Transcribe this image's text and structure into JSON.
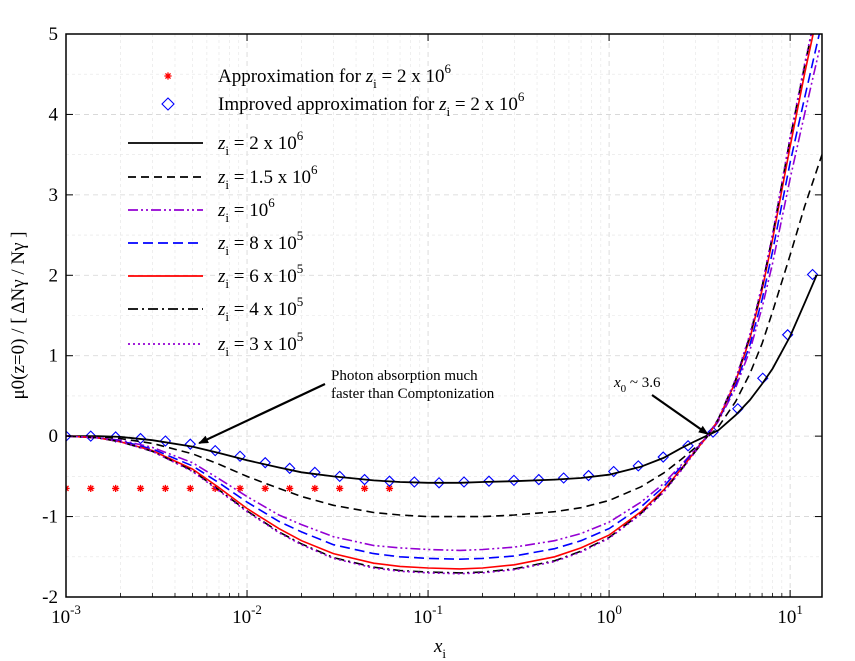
{
  "chart_data": {
    "type": "line",
    "title": "",
    "xlabel": {
      "symbol": "x",
      "sub": "i"
    },
    "ylabel": "μ0(z=0) / [ ΔNγ / Nγ ]",
    "xscale": "log",
    "xlim": [
      0.001,
      15
    ],
    "ylim": [
      -2,
      5
    ],
    "x_ticks": [
      {
        "value": 0.001,
        "base": "10",
        "exp": "-3"
      },
      {
        "value": 0.01,
        "base": "10",
        "exp": "-2"
      },
      {
        "value": 0.1,
        "base": "10",
        "exp": "-1"
      },
      {
        "value": 1,
        "base": "10",
        "exp": "0"
      },
      {
        "value": 10,
        "base": "10",
        "exp": "1"
      }
    ],
    "y_ticks": [
      "-2",
      "-1",
      "0",
      "1",
      "2",
      "3",
      "4",
      "5"
    ],
    "grid": true,
    "legend_position": "top-left",
    "series": [
      {
        "name": "Approximation for zi = 2 x 10^6",
        "label_pre": "Approximation for ",
        "z": "z",
        "sub": "i",
        "val": " = 2 x 10",
        "exp": "6",
        "style": "marker-star",
        "color": "#ff0000",
        "x": [
          0.001,
          0.00137,
          0.00188,
          0.00258,
          0.00354,
          0.00486,
          0.00667,
          0.00915,
          0.0126,
          0.0172,
          0.0237,
          0.0325,
          0.0446,
          0.0612
        ],
        "y": [
          -0.65,
          -0.65,
          -0.65,
          -0.65,
          -0.65,
          -0.65,
          -0.65,
          -0.65,
          -0.65,
          -0.65,
          -0.65,
          -0.65,
          -0.65,
          -0.65
        ]
      },
      {
        "name": "Improved approximation for zi = 2 x 10^6",
        "label_pre": "Improved approximation for ",
        "z": "z",
        "sub": "i",
        "val": " = 2 x 10",
        "exp": "6",
        "style": "marker-diamond",
        "color": "#0000ff",
        "x": [
          0.001,
          0.00137,
          0.00188,
          0.00258,
          0.00354,
          0.00486,
          0.00667,
          0.00915,
          0.0126,
          0.0172,
          0.0237,
          0.0325,
          0.0446,
          0.0612,
          0.084,
          0.115,
          0.158,
          0.217,
          0.298,
          0.409,
          0.561,
          0.77,
          1.06,
          1.45,
          1.99,
          2.73,
          3.75,
          5.14,
          7.06,
          9.69,
          13.3
        ],
        "y": [
          0,
          0,
          -0.01,
          -0.03,
          -0.06,
          -0.1,
          -0.18,
          -0.25,
          -0.33,
          -0.4,
          -0.45,
          -0.5,
          -0.54,
          -0.56,
          -0.57,
          -0.58,
          -0.57,
          -0.56,
          -0.55,
          -0.54,
          -0.52,
          -0.49,
          -0.44,
          -0.37,
          -0.26,
          -0.12,
          0.05,
          0.34,
          0.72,
          1.26,
          2.01
        ]
      },
      {
        "name": "zi = 2 x 10^6",
        "z": "z",
        "sub": "i",
        "val": " = 2 x 10",
        "exp": "6",
        "style": "solid",
        "color": "#000000",
        "x": [
          0.001,
          0.0015,
          0.002,
          0.003,
          0.005,
          0.007,
          0.01,
          0.015,
          0.02,
          0.03,
          0.05,
          0.07,
          0.1,
          0.15,
          0.2,
          0.3,
          0.5,
          0.7,
          1,
          1.5,
          2,
          2.5,
          3,
          3.5,
          4,
          5,
          6,
          7,
          8,
          10,
          12,
          14
        ],
        "y": [
          0,
          0,
          -0.01,
          -0.05,
          -0.13,
          -0.21,
          -0.3,
          -0.39,
          -0.45,
          -0.5,
          -0.55,
          -0.57,
          -0.58,
          -0.58,
          -0.57,
          -0.56,
          -0.54,
          -0.52,
          -0.48,
          -0.38,
          -0.27,
          -0.15,
          -0.06,
          0.01,
          0.07,
          0.26,
          0.45,
          0.65,
          0.84,
          1.24,
          1.65,
          2.0
        ]
      },
      {
        "name": "zi = 1.5 x 10^6",
        "z": "z",
        "sub": "i",
        "val": " = 1.5 x 10",
        "exp": "6",
        "style": "dashed",
        "color": "#000000",
        "x": [
          0.001,
          0.0015,
          0.002,
          0.003,
          0.005,
          0.007,
          0.01,
          0.015,
          0.02,
          0.03,
          0.05,
          0.07,
          0.1,
          0.15,
          0.2,
          0.3,
          0.5,
          0.7,
          1,
          1.5,
          2,
          2.5,
          3,
          3.5,
          4,
          5,
          6,
          7,
          8,
          10,
          12,
          15
        ],
        "y": [
          0,
          -0.01,
          -0.03,
          -0.09,
          -0.22,
          -0.35,
          -0.5,
          -0.65,
          -0.75,
          -0.86,
          -0.95,
          -0.98,
          -1.0,
          -1.0,
          -1.0,
          -0.98,
          -0.94,
          -0.89,
          -0.8,
          -0.63,
          -0.46,
          -0.29,
          -0.14,
          -0.01,
          0.11,
          0.43,
          0.78,
          1.15,
          1.55,
          2.25,
          2.85,
          3.5
        ]
      },
      {
        "name": "zi = 10^6",
        "z": "z",
        "sub": "i",
        "val": " = 10",
        "exp": "6",
        "style": "dashdotdot",
        "color": "#9400d3",
        "x": [
          0.001,
          0.0015,
          0.002,
          0.003,
          0.005,
          0.007,
          0.01,
          0.015,
          0.02,
          0.03,
          0.05,
          0.07,
          0.1,
          0.15,
          0.2,
          0.3,
          0.5,
          0.7,
          1,
          1.5,
          2,
          2.5,
          3,
          3.5,
          4,
          5,
          6,
          7,
          8,
          10,
          12,
          14.5
        ],
        "y": [
          0,
          -0.02,
          -0.05,
          -0.14,
          -0.33,
          -0.53,
          -0.75,
          -0.98,
          -1.1,
          -1.25,
          -1.36,
          -1.39,
          -1.41,
          -1.42,
          -1.41,
          -1.38,
          -1.3,
          -1.21,
          -1.07,
          -0.82,
          -0.59,
          -0.36,
          -0.16,
          0.0,
          0.18,
          0.6,
          1.07,
          1.6,
          2.15,
          3.2,
          4.0,
          4.8
        ]
      },
      {
        "name": "zi = 8 x 10^5",
        "z": "z",
        "sub": "i",
        "val": " = 8 x 10",
        "exp": "5",
        "style": "dashed-long",
        "color": "#0000ff",
        "x": [
          0.001,
          0.0015,
          0.002,
          0.003,
          0.005,
          0.007,
          0.01,
          0.015,
          0.02,
          0.03,
          0.05,
          0.07,
          0.1,
          0.15,
          0.2,
          0.3,
          0.5,
          0.7,
          1,
          1.5,
          2,
          2.5,
          3,
          3.5,
          4,
          5,
          6,
          7,
          8,
          10,
          12,
          14.5
        ],
        "y": [
          0,
          -0.02,
          -0.06,
          -0.16,
          -0.37,
          -0.58,
          -0.82,
          -1.06,
          -1.19,
          -1.35,
          -1.46,
          -1.5,
          -1.52,
          -1.53,
          -1.52,
          -1.49,
          -1.4,
          -1.3,
          -1.15,
          -0.88,
          -0.63,
          -0.38,
          -0.17,
          0.0,
          0.19,
          0.64,
          1.14,
          1.7,
          2.3,
          3.4,
          4.2,
          5.0
        ]
      },
      {
        "name": "zi = 6 x 10^5",
        "z": "z",
        "sub": "i",
        "val": " = 6 x 10",
        "exp": "5",
        "style": "solid",
        "color": "#ff0000",
        "x": [
          0.001,
          0.0015,
          0.002,
          0.003,
          0.005,
          0.007,
          0.01,
          0.015,
          0.02,
          0.03,
          0.05,
          0.07,
          0.1,
          0.15,
          0.2,
          0.3,
          0.5,
          0.7,
          1,
          1.5,
          2,
          2.5,
          3,
          3.5,
          4,
          5,
          6,
          7,
          8,
          10,
          12,
          14
        ],
        "y": [
          0,
          -0.02,
          -0.07,
          -0.18,
          -0.41,
          -0.64,
          -0.9,
          -1.15,
          -1.3,
          -1.46,
          -1.58,
          -1.62,
          -1.64,
          -1.65,
          -1.64,
          -1.6,
          -1.5,
          -1.39,
          -1.23,
          -0.94,
          -0.67,
          -0.41,
          -0.18,
          0.0,
          0.2,
          0.68,
          1.22,
          1.82,
          2.45,
          3.6,
          4.5,
          5.2
        ]
      },
      {
        "name": "zi = 4 x 10^5",
        "z": "z",
        "sub": "i",
        "val": " = 4 x 10",
        "exp": "5",
        "style": "dashdot",
        "color": "#000000",
        "x": [
          0.001,
          0.0015,
          0.002,
          0.003,
          0.005,
          0.007,
          0.01,
          0.015,
          0.02,
          0.03,
          0.05,
          0.07,
          0.1,
          0.15,
          0.2,
          0.3,
          0.5,
          0.7,
          1,
          1.5,
          2,
          2.5,
          3,
          3.5,
          4,
          5,
          6,
          7,
          8,
          10,
          12,
          14
        ],
        "y": [
          0,
          -0.02,
          -0.07,
          -0.19,
          -0.43,
          -0.67,
          -0.93,
          -1.19,
          -1.34,
          -1.51,
          -1.63,
          -1.67,
          -1.69,
          -1.7,
          -1.69,
          -1.65,
          -1.55,
          -1.43,
          -1.26,
          -0.96,
          -0.69,
          -0.42,
          -0.19,
          0.0,
          0.21,
          0.7,
          1.25,
          1.86,
          2.5,
          3.7,
          4.6,
          5.3
        ]
      },
      {
        "name": "zi = 3 x 10^5",
        "z": "z",
        "sub": "i",
        "val": " = 3 x 10",
        "exp": "5",
        "style": "dotted",
        "color": "#9400d3",
        "x": [
          0.001,
          0.0015,
          0.002,
          0.003,
          0.005,
          0.007,
          0.01,
          0.015,
          0.02,
          0.03,
          0.05,
          0.07,
          0.1,
          0.15,
          0.2,
          0.3,
          0.5,
          0.7,
          1,
          1.5,
          2,
          2.5,
          3,
          3.5,
          4,
          5,
          6,
          7,
          8,
          10,
          12,
          14
        ],
        "y": [
          0,
          -0.02,
          -0.07,
          -0.19,
          -0.44,
          -0.68,
          -0.94,
          -1.2,
          -1.35,
          -1.52,
          -1.64,
          -1.68,
          -1.7,
          -1.71,
          -1.7,
          -1.66,
          -1.56,
          -1.44,
          -1.27,
          -0.97,
          -0.7,
          -0.43,
          -0.19,
          0.0,
          0.21,
          0.71,
          1.27,
          1.88,
          2.52,
          3.72,
          4.62,
          5.32
        ]
      }
    ],
    "annotations": [
      {
        "id": "absorption",
        "lines": [
          "Photon absorption much",
          "faster than Comptonization"
        ],
        "points_to": {
          "x": 0.0053,
          "y": -0.1
        }
      },
      {
        "id": "x0",
        "pre": "x",
        "sub": "0",
        "text": " ~ 3.6",
        "points_to": {
          "x": 3.6,
          "y": 0
        }
      }
    ]
  }
}
